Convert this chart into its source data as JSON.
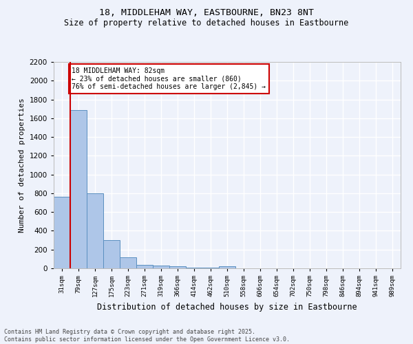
{
  "title_line1": "18, MIDDLEHAM WAY, EASTBOURNE, BN23 8NT",
  "title_line2": "Size of property relative to detached houses in Eastbourne",
  "xlabel": "Distribution of detached houses by size in Eastbourne",
  "ylabel": "Number of detached properties",
  "categories": [
    "31sqm",
    "79sqm",
    "127sqm",
    "175sqm",
    "223sqm",
    "271sqm",
    "319sqm",
    "366sqm",
    "414sqm",
    "462sqm",
    "510sqm",
    "558sqm",
    "606sqm",
    "654sqm",
    "702sqm",
    "750sqm",
    "798sqm",
    "846sqm",
    "894sqm",
    "941sqm",
    "989sqm"
  ],
  "values": [
    760,
    1690,
    800,
    300,
    120,
    35,
    28,
    20,
    10,
    5,
    25,
    0,
    0,
    0,
    0,
    0,
    0,
    0,
    0,
    0,
    0
  ],
  "bar_color": "#aec6e8",
  "bar_edge_color": "#5a8fc0",
  "annotation_text": "18 MIDDLEHAM WAY: 82sqm\n← 23% of detached houses are smaller (860)\n76% of semi-detached houses are larger (2,845) →",
  "annotation_box_color": "#ffffff",
  "annotation_box_edge": "#cc0000",
  "ylim": [
    0,
    2200
  ],
  "yticks": [
    0,
    200,
    400,
    600,
    800,
    1000,
    1200,
    1400,
    1600,
    1800,
    2000,
    2200
  ],
  "bg_color": "#eef2fb",
  "grid_color": "#ffffff",
  "footer": "Contains HM Land Registry data © Crown copyright and database right 2025.\nContains public sector information licensed under the Open Government Licence v3.0."
}
